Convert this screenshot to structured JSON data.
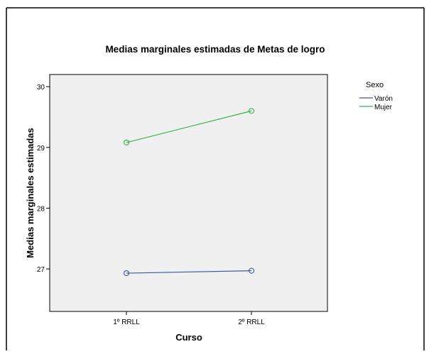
{
  "chart_data": {
    "type": "line",
    "title": "Medias marginales estimadas de Metas de logro",
    "xlabel": "Curso",
    "ylabel": "Medias marginales estimadas",
    "categories": [
      "1º RRLL",
      "2º RRLL"
    ],
    "yticks": [
      "27",
      "28",
      "29",
      "30"
    ],
    "ylim": [
      26.3,
      30.2
    ],
    "legend_title": "Sexo",
    "legend_position": "top-right",
    "grid": false,
    "plot_background": "#f0f0f0",
    "series": [
      {
        "name": "Varón",
        "values": [
          26.93,
          26.97
        ],
        "color": "#3f55a8"
      },
      {
        "name": "Mujer",
        "values": [
          29.08,
          29.6
        ],
        "color": "#33b54a"
      }
    ]
  }
}
